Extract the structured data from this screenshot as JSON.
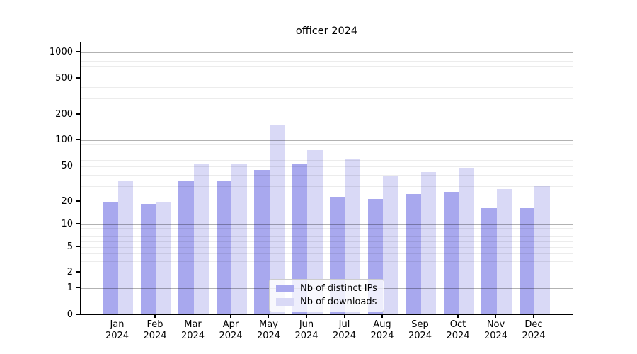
{
  "chart_data": {
    "type": "bar",
    "title": "officer 2024",
    "scale": "symlog",
    "grid": true,
    "legend_position": "lower center",
    "y_ticks": [
      1000,
      500,
      200,
      100,
      50,
      20,
      10,
      5,
      2,
      1,
      0
    ],
    "ylim": [
      0,
      1400
    ],
    "categories": [
      {
        "line1": "Jan",
        "line2": "2024"
      },
      {
        "line1": "Feb",
        "line2": "2024"
      },
      {
        "line1": "Mar",
        "line2": "2024"
      },
      {
        "line1": "Apr",
        "line2": "2024"
      },
      {
        "line1": "May",
        "line2": "2024"
      },
      {
        "line1": "Jun",
        "line2": "2024"
      },
      {
        "line1": "Jul",
        "line2": "2024"
      },
      {
        "line1": "Aug",
        "line2": "2024"
      },
      {
        "line1": "Sep",
        "line2": "2024"
      },
      {
        "line1": "Oct",
        "line2": "2024"
      },
      {
        "line1": "Nov",
        "line2": "2024"
      },
      {
        "line1": "Dec",
        "line2": "2024"
      }
    ],
    "series": [
      {
        "name": "Nb of distinct IPs",
        "color": "#a8a8ee",
        "values": [
          19,
          18,
          33,
          34,
          45,
          53,
          22,
          21,
          24,
          25,
          16,
          16
        ]
      },
      {
        "name": "Nb of downloads",
        "color": "#d9d9f6",
        "values": [
          34,
          19,
          52,
          52,
          145,
          75,
          60,
          38,
          42,
          47,
          27,
          29
        ]
      }
    ]
  }
}
